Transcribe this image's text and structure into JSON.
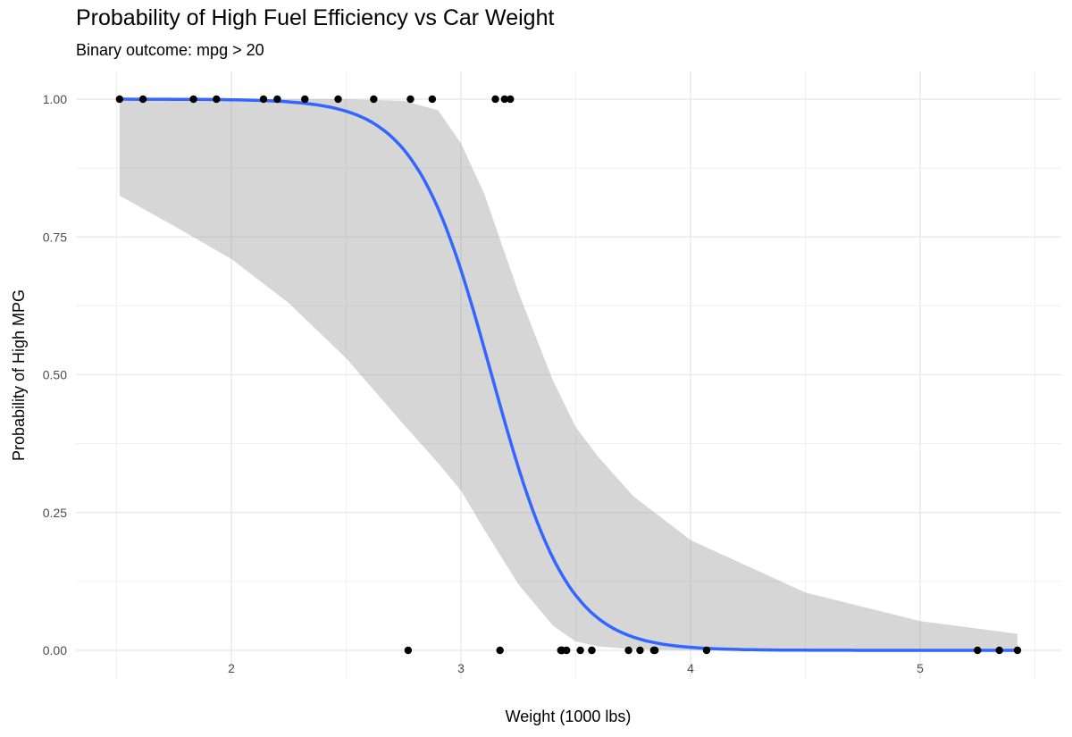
{
  "chart_data": {
    "type": "scatter",
    "title": "Probability of High Fuel Efficiency vs Car Weight",
    "subtitle": "Binary outcome: mpg > 20",
    "xlabel": "Weight (1000 lbs)",
    "ylabel": "Probability of High MPG",
    "xlim": [
      1.3,
      5.62
    ],
    "ylim": [
      -0.05,
      1.05
    ],
    "xticks": [
      2,
      3,
      4,
      5
    ],
    "xtick_labels": [
      "2",
      "3",
      "4",
      "5"
    ],
    "yticks": [
      0,
      0.25,
      0.5,
      0.75,
      1
    ],
    "ytick_labels": [
      "0.00",
      "0.25",
      "0.50",
      "0.75",
      "1.00"
    ],
    "grid": true,
    "points": {
      "x": [
        1.513,
        1.615,
        1.835,
        1.935,
        2.14,
        2.2,
        2.32,
        2.465,
        2.62,
        2.78,
        2.875,
        3.15,
        3.19,
        3.215,
        2.77,
        3.17,
        3.435,
        3.44,
        3.44,
        3.44,
        3.46,
        3.52,
        3.57,
        3.57,
        3.73,
        3.78,
        3.84,
        3.845,
        4.07,
        5.25,
        5.345,
        5.424
      ],
      "y": [
        1,
        1,
        1,
        1,
        1,
        1,
        1,
        1,
        1,
        1,
        1,
        1,
        1,
        1,
        0,
        0,
        0,
        0,
        0,
        0,
        0,
        0,
        0,
        0,
        0,
        0,
        0,
        0,
        0,
        0,
        0,
        0
      ]
    },
    "fit": {
      "type": "logistic",
      "intercept": 18.8,
      "slope": -6.0,
      "color": "#3366FF"
    },
    "ribbon": {
      "x": [
        1.513,
        1.75,
        2.0,
        2.25,
        2.5,
        2.75,
        2.9,
        3.0,
        3.1,
        3.25,
        3.4,
        3.5,
        3.6,
        3.75,
        4.0,
        4.5,
        5.0,
        5.424
      ],
      "lower": [
        0.825,
        0.77,
        0.71,
        0.63,
        0.53,
        0.41,
        0.34,
        0.29,
        0.22,
        0.12,
        0.045,
        0.016,
        0.007,
        0.002,
        0.0,
        0.0,
        0.0,
        0.0
      ],
      "upper": [
        1.0,
        1.0,
        1.0,
        1.0,
        1.0,
        0.997,
        0.98,
        0.92,
        0.83,
        0.65,
        0.49,
        0.405,
        0.35,
        0.28,
        0.2,
        0.105,
        0.053,
        0.03
      ],
      "color": "#999999"
    }
  }
}
